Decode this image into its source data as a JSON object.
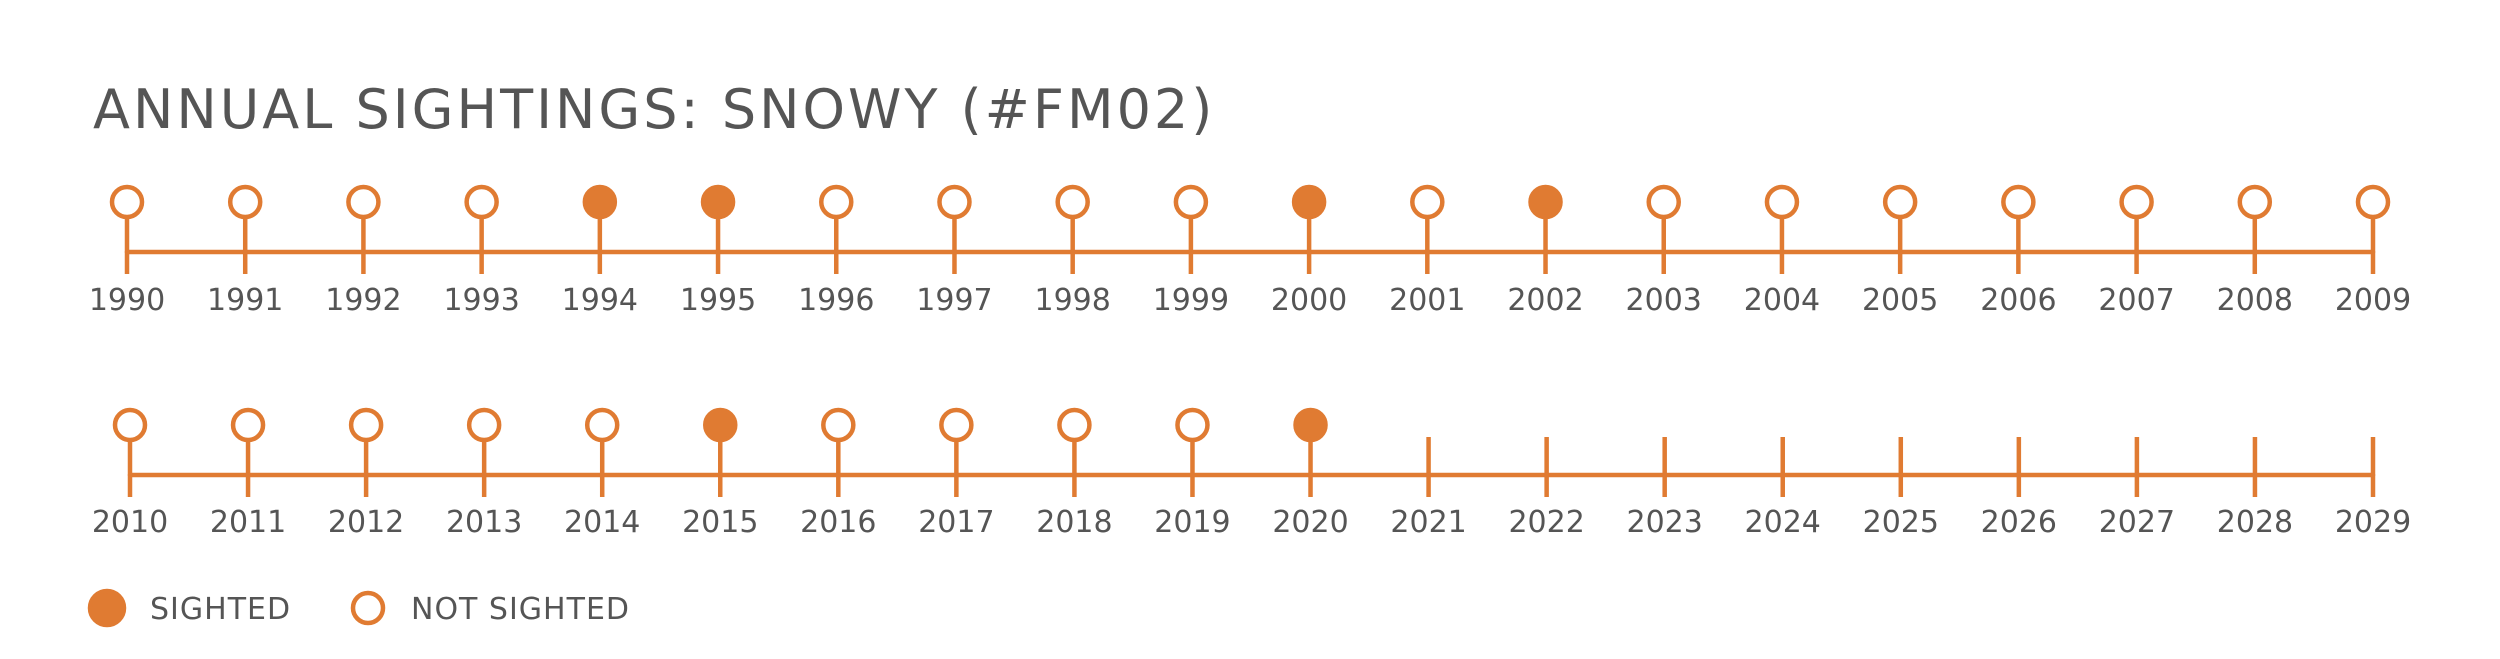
{
  "colors": {
    "accent": "#E07B32",
    "text": "#555555",
    "background": "#FFFFFF"
  },
  "chart_data": {
    "type": "timeline",
    "title": "ANNUAL SIGHTINGS: SNOWY (#FM02)",
    "rows": [
      {
        "years": [
          1990,
          1991,
          1992,
          1993,
          1994,
          1995,
          1996,
          1997,
          1998,
          1999,
          2000,
          2001,
          2002,
          2003,
          2004,
          2005,
          2006,
          2007,
          2008,
          2009
        ],
        "status": [
          "not_sighted",
          "not_sighted",
          "not_sighted",
          "not_sighted",
          "sighted",
          "sighted",
          "not_sighted",
          "not_sighted",
          "not_sighted",
          "not_sighted",
          "sighted",
          "not_sighted",
          "sighted",
          "not_sighted",
          "not_sighted",
          "not_sighted",
          "not_sighted",
          "not_sighted",
          "not_sighted",
          "not_sighted"
        ]
      },
      {
        "years": [
          2010,
          2011,
          2012,
          2013,
          2014,
          2015,
          2016,
          2017,
          2018,
          2019,
          2020,
          2021,
          2022,
          2023,
          2024,
          2025,
          2026,
          2027,
          2028,
          2029
        ],
        "status": [
          "not_sighted",
          "not_sighted",
          "not_sighted",
          "not_sighted",
          "not_sighted",
          "sighted",
          "not_sighted",
          "not_sighted",
          "not_sighted",
          "not_sighted",
          "sighted",
          "none",
          "none",
          "none",
          "none",
          "none",
          "none",
          "none",
          "none",
          "none"
        ]
      }
    ],
    "legend": [
      {
        "key": "sighted",
        "label": "SIGHTED",
        "marker": "filled-circle"
      },
      {
        "key": "not_sighted",
        "label": "NOT SIGHTED",
        "marker": "hollow-circle"
      }
    ],
    "legend_position": "bottom-left"
  }
}
